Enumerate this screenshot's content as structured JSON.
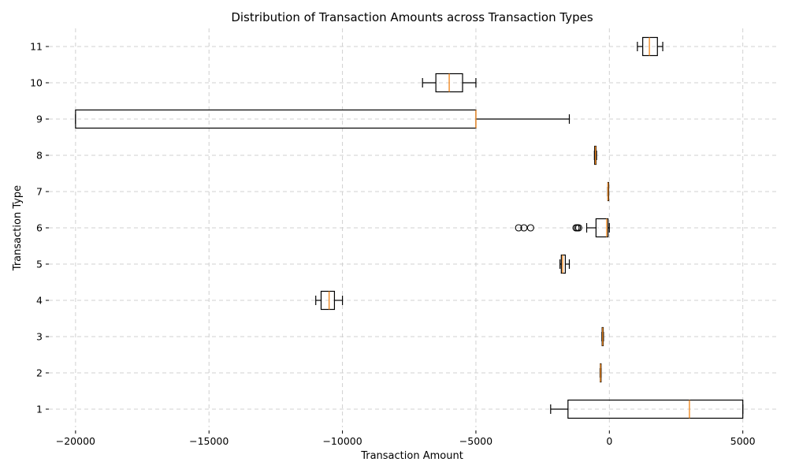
{
  "chart_data": {
    "type": "boxplot",
    "orientation": "horizontal",
    "title": "Distribution of Transaction Amounts across Transaction Types",
    "xlabel": "Transaction Amount",
    "ylabel": "Transaction Type",
    "xlim": [
      -21000,
      6250
    ],
    "x_ticks": [
      -20000,
      -15000,
      -10000,
      -5000,
      0,
      5000
    ],
    "x_tick_labels": [
      "−20000",
      "−15000",
      "−10000",
      "−5000",
      "0",
      "5000"
    ],
    "grid": true,
    "categories": [
      "1",
      "2",
      "3",
      "4",
      "5",
      "6",
      "7",
      "8",
      "9",
      "10",
      "11"
    ],
    "boxes": [
      {
        "category": "1",
        "whisker_low": -2200,
        "q1": -1550,
        "median": 3000,
        "q3": 5000,
        "whisker_high": 5000,
        "fliers": []
      },
      {
        "category": "2",
        "whisker_low": -350,
        "q1": -340,
        "median": -330,
        "q3": -320,
        "whisker_high": -310,
        "fliers": []
      },
      {
        "category": "3",
        "whisker_low": -280,
        "q1": -270,
        "median": -250,
        "q3": -230,
        "whisker_high": -220,
        "fliers": []
      },
      {
        "category": "4",
        "whisker_low": -11000,
        "q1": -10800,
        "median": -10500,
        "q3": -10300,
        "whisker_high": -10000,
        "fliers": []
      },
      {
        "category": "5",
        "whisker_low": -1850,
        "q1": -1800,
        "median": -1750,
        "q3": -1650,
        "whisker_high": -1500,
        "fliers": []
      },
      {
        "category": "6",
        "whisker_low": -850,
        "q1": -500,
        "median": -100,
        "q3": -50,
        "whisker_high": 0,
        "fliers": [
          -3400,
          -3200,
          -2950,
          -1250,
          -1200,
          -1150
        ]
      },
      {
        "category": "7",
        "whisker_low": -60,
        "q1": -55,
        "median": -50,
        "q3": -45,
        "whisker_high": -40,
        "fliers": []
      },
      {
        "category": "8",
        "whisker_low": -560,
        "q1": -550,
        "median": -520,
        "q3": -500,
        "whisker_high": -480,
        "fliers": []
      },
      {
        "category": "9",
        "whisker_low": -20000,
        "q1": -20000,
        "median": -5000,
        "q3": -5000,
        "whisker_high": -1500,
        "fliers": []
      },
      {
        "category": "10",
        "whisker_low": -7000,
        "q1": -6500,
        "median": -6000,
        "q3": -5500,
        "whisker_high": -5000,
        "fliers": []
      },
      {
        "category": "11",
        "whisker_low": 1050,
        "q1": 1250,
        "median": 1500,
        "q3": 1800,
        "whisker_high": 2000,
        "fliers": []
      }
    ]
  }
}
